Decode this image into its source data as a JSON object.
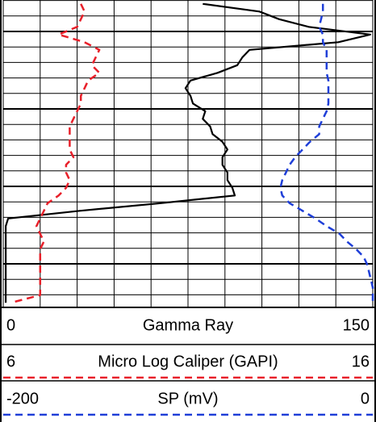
{
  "chart_data": {
    "type": "well-log",
    "categories": [
      null,
      null,
      null,
      null,
      null,
      null,
      null,
      null,
      null,
      null,
      null,
      null,
      null,
      null,
      null,
      null,
      null,
      null,
      null,
      null,
      null,
      null,
      null,
      null,
      null,
      null,
      null,
      null,
      null,
      null,
      null,
      null,
      null,
      null,
      null,
      null,
      null,
      null,
      null,
      null
    ],
    "series": [
      {
        "name": "Gamma Ray",
        "color": "#000000",
        "dash": false,
        "xlim": [
          0,
          150
        ],
        "values": [
          81,
          104,
          112,
          124,
          149,
          136,
          100,
          97,
          95,
          87,
          76,
          74,
          76,
          77,
          82,
          81,
          84,
          85,
          89,
          91,
          89,
          89,
          91,
          91,
          93,
          94,
          64,
          31,
          2,
          1,
          1,
          1,
          1,
          1,
          1,
          1,
          1,
          1,
          1,
          1
        ]
      },
      {
        "name": "Micro Log Caliper (GAPI)",
        "color": "#e8202a",
        "dash": true,
        "xlim": [
          6,
          16
        ],
        "values": [
          8.1,
          8.2,
          8.1,
          8.0,
          7.5,
          8.2,
          8.6,
          8.5,
          8.4,
          8.6,
          8.3,
          8.2,
          8.1,
          8.1,
          8.0,
          7.9,
          7.8,
          7.8,
          7.8,
          7.8,
          7.9,
          7.7,
          7.7,
          7.8,
          7.7,
          7.5,
          7.2,
          7.1,
          7.0,
          6.9,
          7.0,
          7.1,
          7.0,
          7.0,
          7.0,
          7.0,
          7.0,
          7.0,
          7.0,
          6.2
        ]
      },
      {
        "name": "SP (mV)",
        "color": "#1f3fd8",
        "dash": true,
        "xlim": [
          -200,
          0
        ],
        "values": [
          -27,
          -27,
          -28,
          -29,
          -27,
          -27,
          -25,
          -25,
          -25,
          -25,
          -24,
          -24,
          -24,
          -24,
          -25,
          -27,
          -29,
          -29,
          -34,
          -38,
          -42,
          -45,
          -47,
          -49,
          -50,
          -49,
          -45,
          -38,
          -31,
          -25,
          -18,
          -14,
          -9,
          -5,
          -3,
          -2,
          -1,
          0,
          0,
          0
        ]
      }
    ],
    "grid": true
  }
}
